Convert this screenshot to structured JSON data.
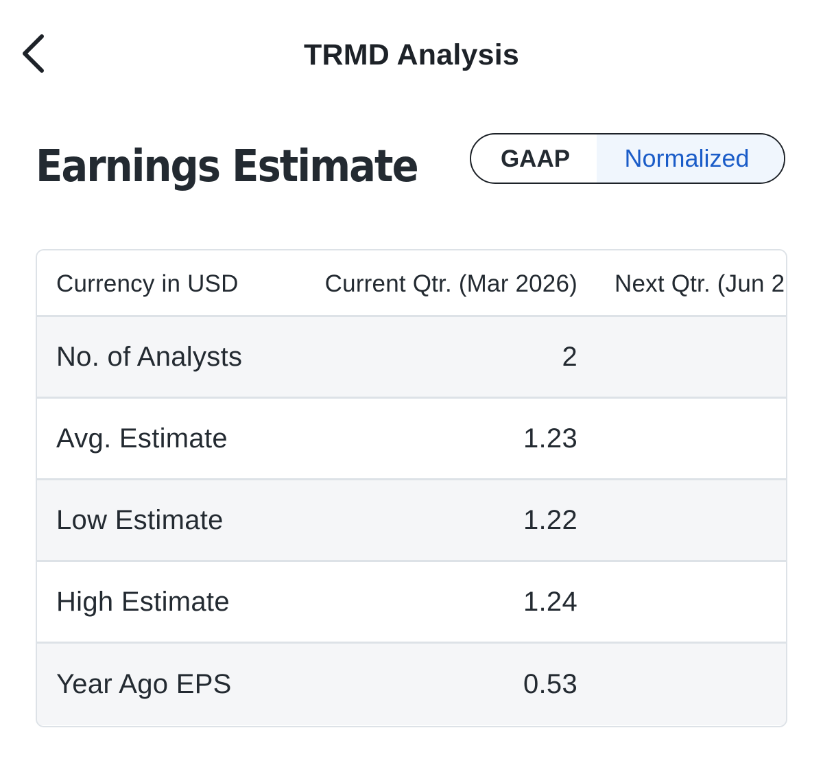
{
  "header": {
    "title": "TRMD Analysis",
    "back_icon": "chevron-left-icon"
  },
  "section": {
    "title": "Earnings Estimate"
  },
  "toggle": {
    "options": [
      "GAAP",
      "Normalized"
    ],
    "selected": "Normalized",
    "selected_color": "#1a5cc8"
  },
  "table": {
    "columns": [
      "Currency in USD",
      "Current Qtr. (Mar 2026)",
      "Next Qtr. (Jun 2"
    ],
    "rows": [
      {
        "label": "No. of Analysts",
        "current_qtr": "2"
      },
      {
        "label": "Avg. Estimate",
        "current_qtr": "1.23"
      },
      {
        "label": "Low Estimate",
        "current_qtr": "1.22"
      },
      {
        "label": "High Estimate",
        "current_qtr": "1.24"
      },
      {
        "label": "Year Ago EPS",
        "current_qtr": "0.53"
      }
    ]
  }
}
